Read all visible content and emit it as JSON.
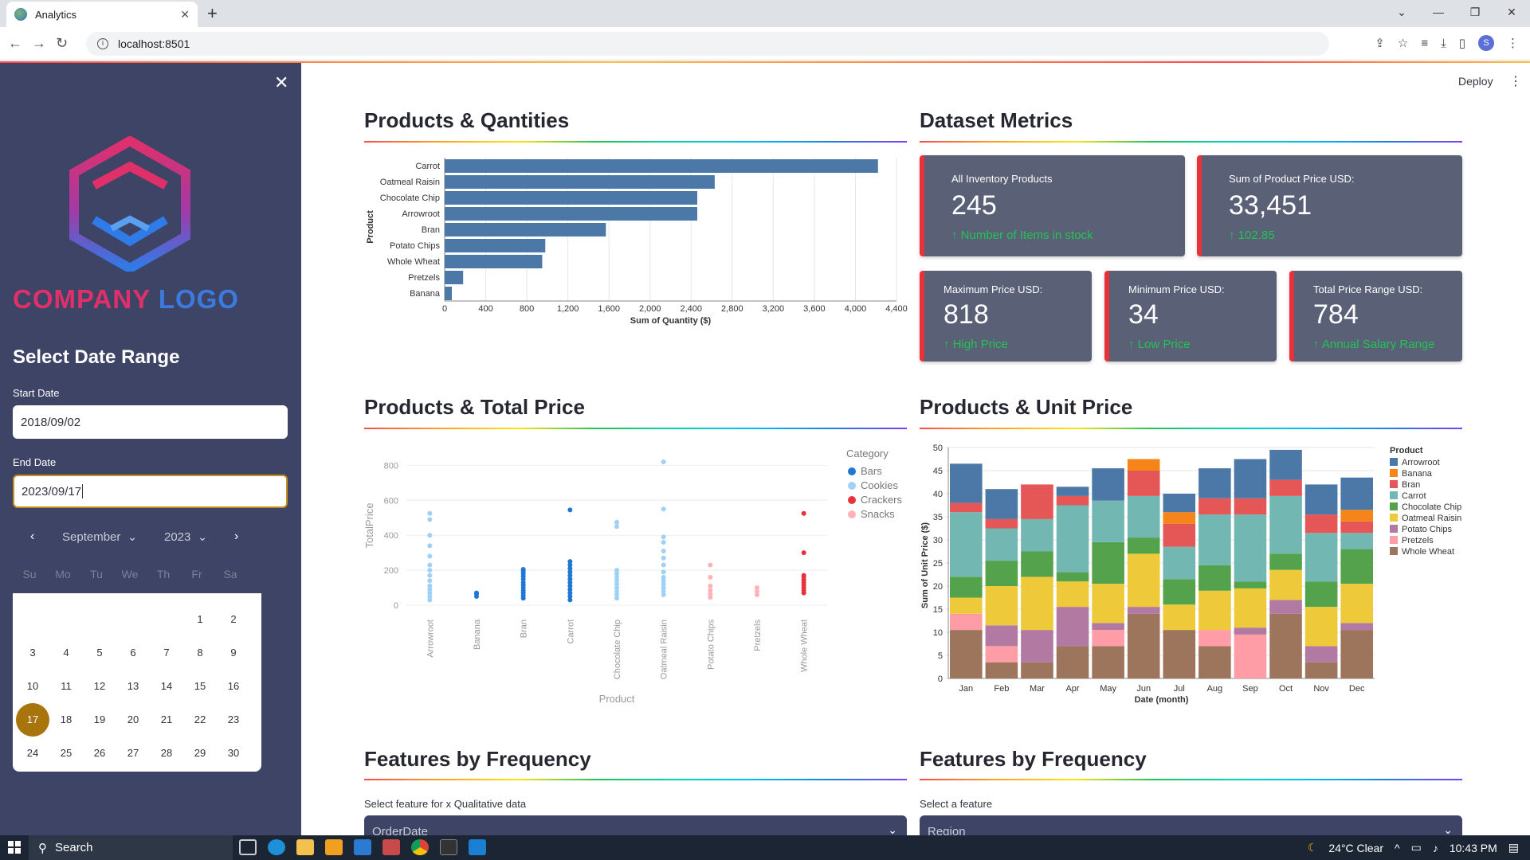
{
  "browser": {
    "tab_title": "Analytics",
    "url": "localhost:8501",
    "profile_initial": "S"
  },
  "header": {
    "deploy_label": "Deploy"
  },
  "sidebar": {
    "logo_word1": "COMPANY",
    "logo_word2": "LOGO",
    "date_title": "Select Date Range",
    "start_label": "Start Date",
    "start_value": "2018/09/02",
    "end_label": "End Date",
    "end_value": "2023/09/17",
    "calendar": {
      "month": "September",
      "year": "2023",
      "dow": [
        "Su",
        "Mo",
        "Tu",
        "We",
        "Th",
        "Fr",
        "Sa"
      ],
      "weeks": [
        [
          "",
          "",
          "",
          "",
          "",
          "1",
          "2"
        ],
        [
          "3",
          "4",
          "5",
          "6",
          "7",
          "8",
          "9"
        ],
        [
          "10",
          "11",
          "12",
          "13",
          "14",
          "15",
          "16"
        ],
        [
          "17",
          "18",
          "19",
          "20",
          "21",
          "22",
          "23"
        ],
        [
          "24",
          "25",
          "26",
          "27",
          "28",
          "29",
          "30"
        ]
      ],
      "selected": "17"
    }
  },
  "sections": {
    "products_quantities": "Products & Qantities",
    "dataset_metrics": "Dataset Metrics",
    "products_total_price": "Products & Total Price",
    "products_unit_price": "Products & Unit Price",
    "features_freq_left": "Features by Frequency",
    "features_freq_right": "Features by Frequency"
  },
  "metrics": [
    {
      "label": "All Inventory Products",
      "value": "245",
      "delta": "Number of Items in stock"
    },
    {
      "label": "Sum of Product Price USD:",
      "value": "33,451",
      "delta": "102.85"
    },
    {
      "label": "Maximum Price USD:",
      "value": "818",
      "delta": "High Price"
    },
    {
      "label": "Minimum Price USD:",
      "value": "34",
      "delta": "Low Price"
    },
    {
      "label": "Total Price Range USD:",
      "value": "784",
      "delta": "Annual Salary Range"
    }
  ],
  "selectors": {
    "left_label": "Select feature for x Qualitative data",
    "left_value": "OrderDate",
    "right_label": "Select a feature",
    "right_value": "Region"
  },
  "colors": {
    "bar_blue": "#4c78a8",
    "metric_bg": "#5a6176",
    "metric_border": "#e8323b",
    "delta_green": "#21c354",
    "sidebar_bg": "#3d4466",
    "selected_day": "#a8740c"
  },
  "chart_data": [
    {
      "type": "bar",
      "orientation": "horizontal",
      "title": "Products & Qantities",
      "xlabel": "Sum of Quantity ($)",
      "ylabel": "Product",
      "categories": [
        "Carrot",
        "Oatmeal Raisin",
        "Chocolate Chip",
        "Arrowroot",
        "Bran",
        "Potato Chips",
        "Whole Wheat",
        "Pretzels",
        "Banana"
      ],
      "values": [
        4220,
        2630,
        2460,
        2460,
        1570,
        980,
        950,
        180,
        70
      ],
      "xticks": [
        "0",
        "400",
        "800",
        "1,200",
        "1,600",
        "2,000",
        "2,400",
        "2,800",
        "3,200",
        "3,600",
        "4,000",
        "4,400"
      ],
      "xlim": [
        0,
        4400
      ]
    },
    {
      "type": "scatter",
      "title": "Products & Total Price",
      "xlabel": "Product",
      "ylabel": "TotalPrice",
      "legend_title": "Category",
      "categories": [
        "Arrowroot",
        "Banana",
        "Bran",
        "Carrot",
        "Chocolate Chip",
        "Oatmeal Raisin",
        "Potato Chips",
        "Pretzels",
        "Whole Wheat"
      ],
      "yticks": [
        "0",
        "200",
        "400",
        "600",
        "800"
      ],
      "ylim": [
        0,
        850
      ],
      "series": [
        {
          "name": "Bars",
          "color": "#1f77d4",
          "points": [
            [
              1,
              50
            ],
            [
              1,
              65
            ],
            [
              1,
              70
            ],
            [
              2,
              40
            ],
            [
              2,
              55
            ],
            [
              2,
              70
            ],
            [
              2,
              85
            ],
            [
              2,
              100
            ],
            [
              2,
              115
            ],
            [
              2,
              130
            ],
            [
              2,
              150
            ],
            [
              2,
              165
            ],
            [
              2,
              180
            ],
            [
              2,
              195
            ],
            [
              2,
              205
            ],
            [
              3,
              30
            ],
            [
              3,
              50
            ],
            [
              3,
              70
            ],
            [
              3,
              90
            ],
            [
              3,
              110
            ],
            [
              3,
              130
            ],
            [
              3,
              150
            ],
            [
              3,
              170
            ],
            [
              3,
              190
            ],
            [
              3,
              210
            ],
            [
              3,
              230
            ],
            [
              3,
              250
            ],
            [
              3,
              545
            ]
          ]
        },
        {
          "name": "Cookies",
          "color": "#9fd0f5",
          "points": [
            [
              0,
              30
            ],
            [
              0,
              50
            ],
            [
              0,
              70
            ],
            [
              0,
              90
            ],
            [
              0,
              110
            ],
            [
              0,
              140
            ],
            [
              0,
              170
            ],
            [
              0,
              200
            ],
            [
              0,
              230
            ],
            [
              0,
              280
            ],
            [
              0,
              340
            ],
            [
              0,
              400
            ],
            [
              0,
              490
            ],
            [
              0,
              525
            ],
            [
              4,
              40
            ],
            [
              4,
              60
            ],
            [
              4,
              80
            ],
            [
              4,
              100
            ],
            [
              4,
              120
            ],
            [
              4,
              140
            ],
            [
              4,
              160
            ],
            [
              4,
              180
            ],
            [
              4,
              200
            ],
            [
              4,
              450
            ],
            [
              4,
              475
            ],
            [
              5,
              60
            ],
            [
              5,
              80
            ],
            [
              5,
              100
            ],
            [
              5,
              120
            ],
            [
              5,
              140
            ],
            [
              5,
              160
            ],
            [
              5,
              190
            ],
            [
              5,
              230
            ],
            [
              5,
              270
            ],
            [
              5,
              310
            ],
            [
              5,
              360
            ],
            [
              5,
              390
            ],
            [
              5,
              550
            ],
            [
              5,
              820
            ]
          ]
        },
        {
          "name": "Crackers",
          "color": "#e8323b",
          "points": [
            [
              8,
              70
            ],
            [
              8,
              85
            ],
            [
              8,
              100
            ],
            [
              8,
              115
            ],
            [
              8,
              130
            ],
            [
              8,
              145
            ],
            [
              8,
              160
            ],
            [
              8,
              170
            ],
            [
              8,
              300
            ],
            [
              8,
              525
            ]
          ]
        },
        {
          "name": "Snacks",
          "color": "#ffb3b8",
          "points": [
            [
              6,
              45
            ],
            [
              6,
              65
            ],
            [
              6,
              85
            ],
            [
              6,
              110
            ],
            [
              6,
              160
            ],
            [
              6,
              230
            ],
            [
              7,
              60
            ],
            [
              7,
              80
            ],
            [
              7,
              100
            ]
          ]
        }
      ]
    },
    {
      "type": "bar",
      "stacked": true,
      "title": "Products & Unit Price",
      "xlabel": "Date (month)",
      "ylabel": "Sum of Unit Price ($)",
      "legend_title": "Product",
      "categories": [
        "Jan",
        "Feb",
        "Mar",
        "Apr",
        "May",
        "Jun",
        "Jul",
        "Aug",
        "Sep",
        "Oct",
        "Nov",
        "Dec"
      ],
      "ylim": [
        0,
        50
      ],
      "yticks": [
        "0",
        "5",
        "10",
        "15",
        "20",
        "25",
        "30",
        "35",
        "40",
        "45",
        "50"
      ],
      "series": [
        {
          "name": "Whole Wheat",
          "color": "#9d755d",
          "values": [
            10.5,
            3.5,
            3.5,
            7,
            7,
            14,
            10.5,
            7,
            0,
            14,
            3.5,
            10.5
          ]
        },
        {
          "name": "Pretzels",
          "color": "#ff9da6",
          "values": [
            3.5,
            3.5,
            0,
            0,
            3.5,
            0,
            0,
            3.5,
            9.5,
            0,
            0,
            0
          ]
        },
        {
          "name": "Potato Chips",
          "color": "#b279a2",
          "values": [
            0,
            4.5,
            7,
            8.5,
            1.5,
            1.5,
            0,
            0,
            1.5,
            3,
            3.5,
            1.5
          ]
        },
        {
          "name": "Oatmeal Raisin",
          "color": "#eeca3b",
          "values": [
            3.5,
            8.5,
            11.5,
            5.5,
            8.5,
            11.5,
            5.5,
            8.5,
            8.5,
            6.5,
            8.5,
            8.5
          ]
        },
        {
          "name": "Chocolate Chip",
          "color": "#54a24b",
          "values": [
            4.5,
            5.5,
            5.5,
            2,
            9,
            3.5,
            5.5,
            5.5,
            1.5,
            3.5,
            5.5,
            7.5
          ]
        },
        {
          "name": "Carrot",
          "color": "#72b7b2",
          "values": [
            14,
            7,
            7,
            14.5,
            9,
            9,
            7,
            11,
            14.5,
            12.5,
            10.5,
            3.5
          ]
        },
        {
          "name": "Bran",
          "color": "#e45756",
          "values": [
            2,
            2,
            7.5,
            2,
            0,
            5.5,
            5,
            3.5,
            3.5,
            3.5,
            4,
            2.5
          ]
        },
        {
          "name": "Banana",
          "color": "#f58518",
          "values": [
            0,
            0,
            0,
            0,
            0,
            2.5,
            2.5,
            0,
            0,
            0,
            0,
            2.5
          ]
        },
        {
          "name": "Arrowroot",
          "color": "#4c78a8",
          "values": [
            8.5,
            6.5,
            0,
            2,
            7,
            0,
            4,
            6.5,
            8.5,
            6.5,
            6.5,
            7
          ]
        }
      ]
    }
  ],
  "taskbar": {
    "search_label": "Search",
    "weather": "24°C  Clear",
    "time": "10:43 PM"
  }
}
